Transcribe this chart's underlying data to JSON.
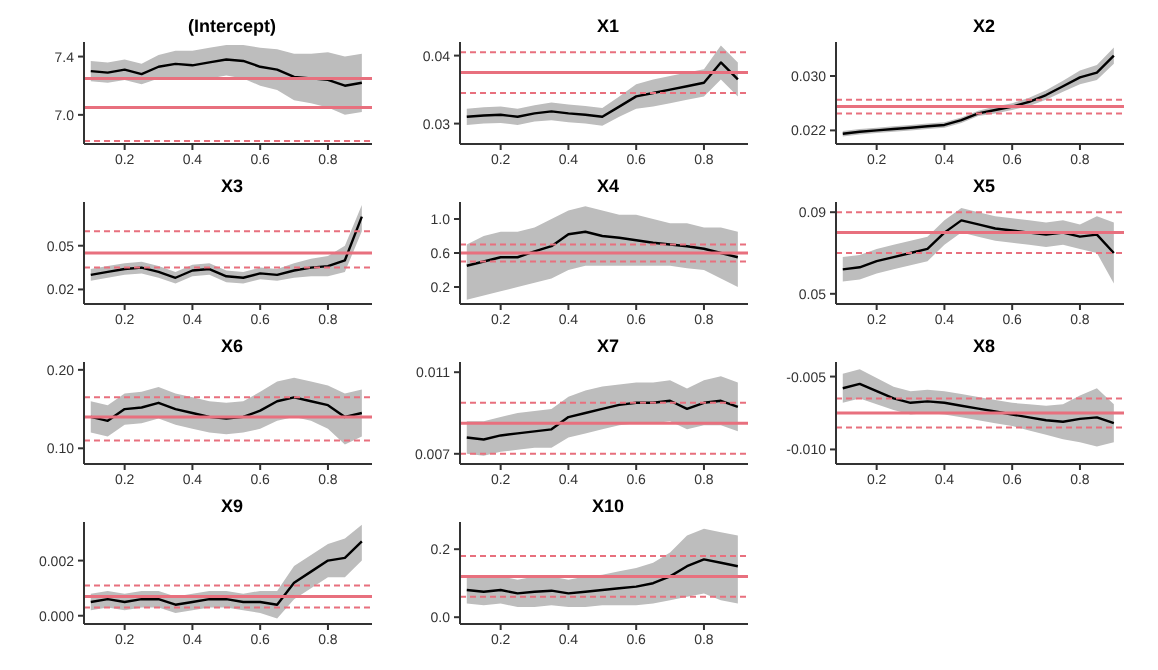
{
  "chart_data": [
    {
      "type": "line",
      "title": "(Intercept)",
      "x": [
        0.1,
        0.15,
        0.2,
        0.25,
        0.3,
        0.35,
        0.4,
        0.45,
        0.5,
        0.55,
        0.6,
        0.65,
        0.7,
        0.75,
        0.8,
        0.85,
        0.9
      ],
      "xlim": [
        0.08,
        0.93
      ],
      "xticks": [
        0.2,
        0.4,
        0.6,
        0.8
      ],
      "ylim": [
        6.8,
        7.5
      ],
      "yticks": [
        {
          "value": 7.0,
          "label": "7.0"
        },
        {
          "value": 7.4,
          "label": "7.4"
        }
      ],
      "series": [
        {
          "color": "#000000",
          "values": [
            7.3,
            7.29,
            7.31,
            7.28,
            7.33,
            7.35,
            7.34,
            7.36,
            7.38,
            7.37,
            7.33,
            7.31,
            7.26,
            7.25,
            7.24,
            7.2,
            7.22
          ],
          "lower": [
            7.23,
            7.22,
            7.24,
            7.21,
            7.25,
            7.26,
            7.24,
            7.25,
            7.27,
            7.25,
            7.2,
            7.17,
            7.1,
            7.08,
            7.05,
            7.0,
            7.02
          ],
          "upper": [
            7.37,
            7.36,
            7.38,
            7.35,
            7.41,
            7.44,
            7.44,
            7.46,
            7.48,
            7.48,
            7.46,
            7.45,
            7.42,
            7.42,
            7.43,
            7.4,
            7.42
          ]
        }
      ],
      "ref_lines": [
        {
          "axis": "y",
          "value": 7.25,
          "color": "#e8707e",
          "line_style": "solid"
        },
        {
          "axis": "y",
          "value": 7.05,
          "color": "#e8707e",
          "line_style": "solid"
        },
        {
          "axis": "y",
          "value": 6.82,
          "color": "#e8707e",
          "line_style": "dashed"
        }
      ]
    },
    {
      "type": "line",
      "title": "X1",
      "x": [
        0.1,
        0.15,
        0.2,
        0.25,
        0.3,
        0.35,
        0.4,
        0.45,
        0.5,
        0.55,
        0.6,
        0.65,
        0.7,
        0.75,
        0.8,
        0.85,
        0.9
      ],
      "xlim": [
        0.08,
        0.93
      ],
      "xticks": [
        0.2,
        0.4,
        0.6,
        0.8
      ],
      "ylim": [
        0.027,
        0.042
      ],
      "yticks": [
        {
          "value": 0.03,
          "label": "0.03"
        },
        {
          "value": 0.04,
          "label": "0.04"
        }
      ],
      "series": [
        {
          "color": "#000000",
          "values": [
            0.031,
            0.0312,
            0.0313,
            0.031,
            0.0315,
            0.0318,
            0.0315,
            0.0313,
            0.031,
            0.0325,
            0.034,
            0.0345,
            0.035,
            0.0355,
            0.036,
            0.039,
            0.0365
          ],
          "lower": [
            0.0298,
            0.03,
            0.0301,
            0.0298,
            0.0303,
            0.0305,
            0.0302,
            0.03,
            0.0297,
            0.031,
            0.0322,
            0.0325,
            0.033,
            0.0335,
            0.034,
            0.0365,
            0.034
          ],
          "upper": [
            0.0322,
            0.0324,
            0.0325,
            0.0322,
            0.0327,
            0.0331,
            0.0328,
            0.0326,
            0.0323,
            0.034,
            0.0358,
            0.0365,
            0.037,
            0.0375,
            0.038,
            0.0415,
            0.039
          ]
        }
      ],
      "ref_lines": [
        {
          "axis": "y",
          "value": 0.0375,
          "color": "#e8707e",
          "line_style": "solid"
        },
        {
          "axis": "y",
          "value": 0.0405,
          "color": "#e8707e",
          "line_style": "dashed"
        },
        {
          "axis": "y",
          "value": 0.0345,
          "color": "#e8707e",
          "line_style": "dashed"
        }
      ]
    },
    {
      "type": "line",
      "title": "X2",
      "x": [
        0.1,
        0.15,
        0.2,
        0.25,
        0.3,
        0.35,
        0.4,
        0.45,
        0.5,
        0.55,
        0.6,
        0.65,
        0.7,
        0.75,
        0.8,
        0.85,
        0.9
      ],
      "xlim": [
        0.08,
        0.93
      ],
      "xticks": [
        0.2,
        0.4,
        0.6,
        0.8
      ],
      "ylim": [
        0.02,
        0.035
      ],
      "yticks": [
        {
          "value": 0.022,
          "label": "0.022"
        },
        {
          "value": 0.03,
          "label": "0.030"
        }
      ],
      "series": [
        {
          "color": "#000000",
          "values": [
            0.0215,
            0.0218,
            0.022,
            0.0222,
            0.0224,
            0.0226,
            0.0228,
            0.0235,
            0.0245,
            0.025,
            0.0255,
            0.0262,
            0.0272,
            0.0285,
            0.0298,
            0.0305,
            0.033
          ],
          "lower": [
            0.0211,
            0.0214,
            0.0216,
            0.0218,
            0.022,
            0.0222,
            0.0224,
            0.0231,
            0.0241,
            0.0245,
            0.025,
            0.0256,
            0.0265,
            0.0277,
            0.0288,
            0.0294,
            0.0318
          ],
          "upper": [
            0.0219,
            0.0222,
            0.0224,
            0.0226,
            0.0228,
            0.023,
            0.0232,
            0.0239,
            0.0249,
            0.0255,
            0.026,
            0.0268,
            0.0279,
            0.0293,
            0.0308,
            0.0316,
            0.0342
          ]
        }
      ],
      "ref_lines": [
        {
          "axis": "y",
          "value": 0.0255,
          "color": "#e8707e",
          "line_style": "solid"
        },
        {
          "axis": "y",
          "value": 0.0265,
          "color": "#e8707e",
          "line_style": "dashed"
        },
        {
          "axis": "y",
          "value": 0.0245,
          "color": "#e8707e",
          "line_style": "dashed"
        }
      ]
    },
    {
      "type": "line",
      "title": "X3",
      "x": [
        0.1,
        0.15,
        0.2,
        0.25,
        0.3,
        0.35,
        0.4,
        0.45,
        0.5,
        0.55,
        0.6,
        0.65,
        0.7,
        0.75,
        0.8,
        0.85,
        0.9
      ],
      "xlim": [
        0.08,
        0.93
      ],
      "xticks": [
        0.2,
        0.4,
        0.6,
        0.8
      ],
      "ylim": [
        0.01,
        0.08
      ],
      "yticks": [
        {
          "value": 0.02,
          "label": "0.02"
        },
        {
          "value": 0.05,
          "label": "0.05"
        }
      ],
      "series": [
        {
          "color": "#000000",
          "values": [
            0.03,
            0.032,
            0.034,
            0.035,
            0.032,
            0.028,
            0.033,
            0.034,
            0.029,
            0.028,
            0.031,
            0.03,
            0.033,
            0.035,
            0.036,
            0.04,
            0.07
          ],
          "lower": [
            0.026,
            0.028,
            0.03,
            0.031,
            0.028,
            0.024,
            0.029,
            0.03,
            0.025,
            0.024,
            0.027,
            0.026,
            0.028,
            0.029,
            0.029,
            0.032,
            0.06
          ],
          "upper": [
            0.034,
            0.036,
            0.038,
            0.039,
            0.036,
            0.032,
            0.037,
            0.038,
            0.033,
            0.032,
            0.035,
            0.034,
            0.038,
            0.041,
            0.043,
            0.05,
            0.078
          ]
        }
      ],
      "ref_lines": [
        {
          "axis": "y",
          "value": 0.045,
          "color": "#e8707e",
          "line_style": "solid"
        },
        {
          "axis": "y",
          "value": 0.06,
          "color": "#e8707e",
          "line_style": "dashed"
        },
        {
          "axis": "y",
          "value": 0.035,
          "color": "#e8707e",
          "line_style": "dashed"
        }
      ]
    },
    {
      "type": "line",
      "title": "X4",
      "x": [
        0.1,
        0.15,
        0.2,
        0.25,
        0.3,
        0.35,
        0.4,
        0.45,
        0.5,
        0.55,
        0.6,
        0.65,
        0.7,
        0.75,
        0.8,
        0.85,
        0.9
      ],
      "xlim": [
        0.08,
        0.93
      ],
      "xticks": [
        0.2,
        0.4,
        0.6,
        0.8
      ],
      "ylim": [
        0,
        1.2
      ],
      "yticks": [
        {
          "value": 0.2,
          "label": "0.2"
        },
        {
          "value": 0.6,
          "label": "0.6"
        },
        {
          "value": 1.0,
          "label": "1.0"
        }
      ],
      "series": [
        {
          "color": "#000000",
          "values": [
            0.45,
            0.5,
            0.55,
            0.55,
            0.62,
            0.68,
            0.82,
            0.85,
            0.8,
            0.78,
            0.75,
            0.72,
            0.7,
            0.68,
            0.65,
            0.6,
            0.55
          ],
          "lower": [
            0.05,
            0.1,
            0.15,
            0.2,
            0.25,
            0.3,
            0.4,
            0.45,
            0.45,
            0.45,
            0.45,
            0.45,
            0.45,
            0.42,
            0.4,
            0.3,
            0.2
          ],
          "upper": [
            0.7,
            0.8,
            0.85,
            0.85,
            0.9,
            1.0,
            1.1,
            1.15,
            1.1,
            1.05,
            1.05,
            1.0,
            0.95,
            0.95,
            0.9,
            0.9,
            0.85
          ]
        }
      ],
      "ref_lines": [
        {
          "axis": "y",
          "value": 0.6,
          "color": "#e8707e",
          "line_style": "solid"
        },
        {
          "axis": "y",
          "value": 0.7,
          "color": "#e8707e",
          "line_style": "dashed"
        },
        {
          "axis": "y",
          "value": 0.5,
          "color": "#e8707e",
          "line_style": "dashed"
        }
      ]
    },
    {
      "type": "line",
      "title": "X5",
      "x": [
        0.1,
        0.15,
        0.2,
        0.25,
        0.3,
        0.35,
        0.4,
        0.45,
        0.5,
        0.55,
        0.6,
        0.65,
        0.7,
        0.75,
        0.8,
        0.85,
        0.9
      ],
      "xlim": [
        0.08,
        0.93
      ],
      "xticks": [
        0.2,
        0.4,
        0.6,
        0.8
      ],
      "ylim": [
        0.045,
        0.095
      ],
      "yticks": [
        {
          "value": 0.05,
          "label": "0.05"
        },
        {
          "value": 0.09,
          "label": "0.09"
        }
      ],
      "series": [
        {
          "color": "#000000",
          "values": [
            0.062,
            0.063,
            0.066,
            0.068,
            0.07,
            0.072,
            0.08,
            0.086,
            0.084,
            0.082,
            0.081,
            0.08,
            0.079,
            0.08,
            0.078,
            0.079,
            0.07
          ],
          "lower": [
            0.056,
            0.057,
            0.06,
            0.062,
            0.064,
            0.066,
            0.074,
            0.08,
            0.078,
            0.076,
            0.075,
            0.074,
            0.073,
            0.074,
            0.072,
            0.07,
            0.055
          ],
          "upper": [
            0.068,
            0.069,
            0.072,
            0.074,
            0.076,
            0.078,
            0.086,
            0.092,
            0.09,
            0.088,
            0.087,
            0.086,
            0.085,
            0.086,
            0.084,
            0.088,
            0.085
          ]
        }
      ],
      "ref_lines": [
        {
          "axis": "y",
          "value": 0.08,
          "color": "#e8707e",
          "line_style": "solid"
        },
        {
          "axis": "y",
          "value": 0.09,
          "color": "#e8707e",
          "line_style": "dashed"
        },
        {
          "axis": "y",
          "value": 0.07,
          "color": "#e8707e",
          "line_style": "dashed"
        }
      ]
    },
    {
      "type": "line",
      "title": "X6",
      "x": [
        0.1,
        0.15,
        0.2,
        0.25,
        0.3,
        0.35,
        0.4,
        0.45,
        0.5,
        0.55,
        0.6,
        0.65,
        0.7,
        0.75,
        0.8,
        0.85,
        0.9
      ],
      "xlim": [
        0.08,
        0.93
      ],
      "xticks": [
        0.2,
        0.4,
        0.6,
        0.8
      ],
      "ylim": [
        0.08,
        0.21
      ],
      "yticks": [
        {
          "value": 0.1,
          "label": "0.10"
        },
        {
          "value": 0.2,
          "label": "0.20"
        }
      ],
      "series": [
        {
          "color": "#000000",
          "values": [
            0.14,
            0.135,
            0.15,
            0.152,
            0.158,
            0.15,
            0.145,
            0.14,
            0.138,
            0.14,
            0.148,
            0.16,
            0.165,
            0.16,
            0.155,
            0.14,
            0.145
          ],
          "lower": [
            0.12,
            0.115,
            0.13,
            0.132,
            0.138,
            0.13,
            0.125,
            0.12,
            0.118,
            0.12,
            0.125,
            0.135,
            0.14,
            0.135,
            0.125,
            0.105,
            0.115
          ],
          "upper": [
            0.16,
            0.155,
            0.17,
            0.172,
            0.178,
            0.17,
            0.165,
            0.16,
            0.158,
            0.16,
            0.172,
            0.185,
            0.19,
            0.185,
            0.18,
            0.17,
            0.175
          ]
        }
      ],
      "ref_lines": [
        {
          "axis": "y",
          "value": 0.14,
          "color": "#e8707e",
          "line_style": "solid"
        },
        {
          "axis": "y",
          "value": 0.165,
          "color": "#e8707e",
          "line_style": "dashed"
        },
        {
          "axis": "y",
          "value": 0.11,
          "color": "#e8707e",
          "line_style": "dashed"
        }
      ]
    },
    {
      "type": "line",
      "title": "X7",
      "x": [
        0.1,
        0.15,
        0.2,
        0.25,
        0.3,
        0.35,
        0.4,
        0.45,
        0.5,
        0.55,
        0.6,
        0.65,
        0.7,
        0.75,
        0.8,
        0.85,
        0.9
      ],
      "xlim": [
        0.08,
        0.93
      ],
      "xticks": [
        0.2,
        0.4,
        0.6,
        0.8
      ],
      "ylim": [
        0.0065,
        0.0115
      ],
      "yticks": [
        {
          "value": 0.007,
          "label": "0.007"
        },
        {
          "value": 0.011,
          "label": "0.011"
        }
      ],
      "series": [
        {
          "color": "#000000",
          "values": [
            0.0078,
            0.0077,
            0.0079,
            0.008,
            0.0081,
            0.0082,
            0.0088,
            0.009,
            0.0092,
            0.0094,
            0.0095,
            0.0095,
            0.0096,
            0.0092,
            0.0095,
            0.0096,
            0.0093
          ],
          "lower": [
            0.007,
            0.0069,
            0.0071,
            0.0072,
            0.0073,
            0.0073,
            0.0078,
            0.008,
            0.0082,
            0.0084,
            0.0085,
            0.0085,
            0.0086,
            0.0082,
            0.0084,
            0.0084,
            0.0081
          ],
          "upper": [
            0.0086,
            0.0086,
            0.0088,
            0.009,
            0.0091,
            0.0092,
            0.0098,
            0.0101,
            0.0103,
            0.0104,
            0.0105,
            0.0105,
            0.0106,
            0.0102,
            0.0106,
            0.0108,
            0.0105
          ]
        }
      ],
      "ref_lines": [
        {
          "axis": "y",
          "value": 0.0085,
          "color": "#e8707e",
          "line_style": "solid"
        },
        {
          "axis": "y",
          "value": 0.0095,
          "color": "#e8707e",
          "line_style": "dashed"
        },
        {
          "axis": "y",
          "value": 0.007,
          "color": "#e8707e",
          "line_style": "dashed"
        }
      ]
    },
    {
      "type": "line",
      "title": "X8",
      "x": [
        0.1,
        0.15,
        0.2,
        0.25,
        0.3,
        0.35,
        0.4,
        0.45,
        0.5,
        0.55,
        0.6,
        0.65,
        0.7,
        0.75,
        0.8,
        0.85,
        0.9
      ],
      "xlim": [
        0.08,
        0.93
      ],
      "xticks": [
        0.2,
        0.4,
        0.6,
        0.8
      ],
      "ylim": [
        -0.011,
        -0.004
      ],
      "yticks": [
        {
          "value": -0.01,
          "label": "-0.010"
        },
        {
          "value": -0.005,
          "label": "-0.005"
        }
      ],
      "series": [
        {
          "color": "#000000",
          "values": [
            -0.0058,
            -0.0055,
            -0.006,
            -0.0065,
            -0.0068,
            -0.0067,
            -0.0068,
            -0.007,
            -0.0072,
            -0.0074,
            -0.0076,
            -0.0078,
            -0.008,
            -0.0081,
            -0.0079,
            -0.0078,
            -0.0082
          ],
          "lower": [
            -0.0068,
            -0.0065,
            -0.0069,
            -0.0073,
            -0.0076,
            -0.0075,
            -0.0076,
            -0.0078,
            -0.008,
            -0.0082,
            -0.0084,
            -0.0087,
            -0.009,
            -0.0093,
            -0.0095,
            -0.0098,
            -0.0095
          ],
          "upper": [
            -0.0048,
            -0.0045,
            -0.0051,
            -0.0057,
            -0.006,
            -0.0059,
            -0.006,
            -0.0062,
            -0.0064,
            -0.0066,
            -0.0068,
            -0.0069,
            -0.007,
            -0.0069,
            -0.0063,
            -0.0058,
            -0.0069
          ]
        }
      ],
      "ref_lines": [
        {
          "axis": "y",
          "value": -0.0075,
          "color": "#e8707e",
          "line_style": "solid"
        },
        {
          "axis": "y",
          "value": -0.0065,
          "color": "#e8707e",
          "line_style": "dashed"
        },
        {
          "axis": "y",
          "value": -0.0085,
          "color": "#e8707e",
          "line_style": "dashed"
        }
      ]
    },
    {
      "type": "line",
      "title": "X9",
      "x": [
        0.1,
        0.15,
        0.2,
        0.25,
        0.3,
        0.35,
        0.4,
        0.45,
        0.5,
        0.55,
        0.6,
        0.65,
        0.7,
        0.75,
        0.8,
        0.85,
        0.9
      ],
      "xlim": [
        0.08,
        0.93
      ],
      "xticks": [
        0.2,
        0.4,
        0.6,
        0.8
      ],
      "ylim": [
        -0.0003,
        0.0034
      ],
      "yticks": [
        {
          "value": 0,
          "label": "0.000"
        },
        {
          "value": 0.002,
          "label": "0.002"
        }
      ],
      "series": [
        {
          "color": "#000000",
          "values": [
            0.0005,
            0.0006,
            0.0005,
            0.0006,
            0.0006,
            0.0004,
            0.0005,
            0.0006,
            0.0006,
            0.0005,
            0.0005,
            0.0004,
            0.0012,
            0.0016,
            0.002,
            0.0021,
            0.0027
          ],
          "lower": [
            0.0002,
            0.0003,
            0.0002,
            0.0003,
            0.0003,
            0.0001,
            0.0002,
            0.0003,
            0.0003,
            0.0002,
            0.0001,
            -0.0001,
            0.0006,
            0.001,
            0.0014,
            0.0014,
            0.002
          ],
          "upper": [
            0.0008,
            0.0009,
            0.0008,
            0.0009,
            0.0009,
            0.0007,
            0.0008,
            0.0009,
            0.0009,
            0.0008,
            0.0009,
            0.0009,
            0.0018,
            0.0022,
            0.0026,
            0.0028,
            0.0033
          ]
        }
      ],
      "ref_lines": [
        {
          "axis": "y",
          "value": 0.0007,
          "color": "#e8707e",
          "line_style": "solid"
        },
        {
          "axis": "y",
          "value": 0.0011,
          "color": "#e8707e",
          "line_style": "dashed"
        },
        {
          "axis": "y",
          "value": 0.0003,
          "color": "#e8707e",
          "line_style": "dashed"
        }
      ]
    },
    {
      "type": "line",
      "title": "X10",
      "x": [
        0.1,
        0.15,
        0.2,
        0.25,
        0.3,
        0.35,
        0.4,
        0.45,
        0.5,
        0.55,
        0.6,
        0.65,
        0.7,
        0.75,
        0.8,
        0.85,
        0.9
      ],
      "xlim": [
        0.08,
        0.93
      ],
      "xticks": [
        0.2,
        0.4,
        0.6,
        0.8
      ],
      "ylim": [
        -0.02,
        0.28
      ],
      "yticks": [
        {
          "value": 0,
          "label": "0.0"
        },
        {
          "value": 0.2,
          "label": "0.2"
        }
      ],
      "series": [
        {
          "color": "#000000",
          "values": [
            0.08,
            0.075,
            0.08,
            0.07,
            0.075,
            0.078,
            0.07,
            0.075,
            0.08,
            0.085,
            0.09,
            0.1,
            0.12,
            0.15,
            0.17,
            0.16,
            0.15
          ],
          "lower": [
            0.04,
            0.035,
            0.04,
            0.03,
            0.03,
            0.035,
            0.03,
            0.03,
            0.035,
            0.035,
            0.035,
            0.04,
            0.05,
            0.06,
            0.07,
            0.05,
            0.04
          ],
          "upper": [
            0.12,
            0.115,
            0.12,
            0.11,
            0.12,
            0.12,
            0.11,
            0.12,
            0.125,
            0.135,
            0.145,
            0.16,
            0.19,
            0.24,
            0.26,
            0.25,
            0.24
          ]
        }
      ],
      "ref_lines": [
        {
          "axis": "y",
          "value": 0.12,
          "color": "#e8707e",
          "line_style": "solid"
        },
        {
          "axis": "y",
          "value": 0.18,
          "color": "#e8707e",
          "line_style": "dashed"
        },
        {
          "axis": "y",
          "value": 0.06,
          "color": "#e8707e",
          "line_style": "dashed"
        }
      ]
    }
  ]
}
